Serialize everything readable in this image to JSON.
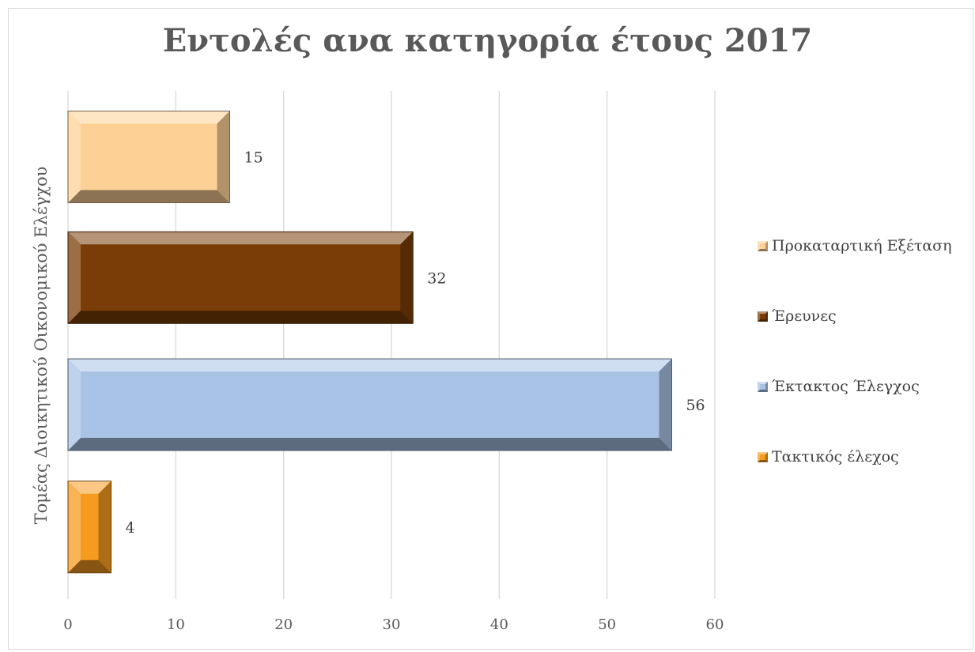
{
  "chart_data": {
    "type": "bar",
    "orientation": "horizontal",
    "title": "Εντολές ανα κατηγορία έτους 2017",
    "category_label": "Τομέας Διοικητικού Οικονομικού Ελέγχου",
    "series": [
      {
        "name": "Προκαταρτική Εξέταση",
        "value": 15,
        "color": "#fdd196"
      },
      {
        "name": "Έρευνες",
        "value": 32,
        "color": "#7a3d08"
      },
      {
        "name": "Έκτακτος Έλεγχος",
        "value": 56,
        "color": "#a9c3e6"
      },
      {
        "name": "Τακτικός έλεχος",
        "value": 4,
        "color": "#f59b1f"
      }
    ],
    "x_ticks": [
      "0",
      "10",
      "20",
      "30",
      "40",
      "50",
      "60"
    ],
    "xlim": [
      0,
      60
    ],
    "grid": "vertical",
    "legend_position": "right"
  }
}
